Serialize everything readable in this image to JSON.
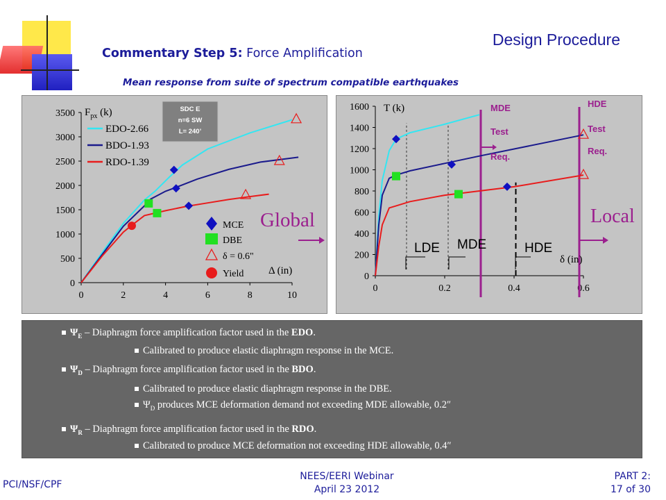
{
  "header": {
    "section_title": "Design Procedure",
    "title_bold": "Commentary Step 5:",
    "title_rest": " Force Amplification",
    "subtitle": "Mean response from suite of spectrum compatible earthquakes"
  },
  "left_chart": {
    "y_axis_title": "F",
    "y_axis_sub": "px",
    "y_axis_unit": " (k)",
    "x_axis_title": "Δ (in)",
    "x_ticks": [
      "0",
      "2",
      "4",
      "6",
      "8",
      "10"
    ],
    "y_ticks": [
      "0",
      "500",
      "1000",
      "1500",
      "2000",
      "2500",
      "3000",
      "3500"
    ],
    "legend_series": [
      "EDO-2.66",
      "BDO-1.93",
      "RDO-1.39"
    ],
    "markers_legend": [
      "MCE",
      "DBE",
      "δ = 0.6\"",
      "Yield"
    ],
    "info_box": [
      "SDC E",
      "n=6 SW",
      "L= 240’"
    ],
    "big_label": "Global"
  },
  "right_chart": {
    "y_axis_title": "T (k)",
    "x_axis_title": "δ (in)",
    "x_ticks": [
      "0",
      "0.2",
      "0.4",
      "0.6"
    ],
    "y_ticks": [
      "0",
      "200",
      "400",
      "600",
      "800",
      "1000",
      "1200",
      "1400",
      "1600"
    ],
    "mde_note": [
      "MDE",
      "Test",
      "Req."
    ],
    "hde_note": [
      "HDE",
      "Test",
      "Req."
    ],
    "zone_labels": [
      "LDE",
      "MDE",
      "HDE"
    ],
    "big_label": "Local"
  },
  "chart_data": [
    {
      "type": "line",
      "title": "Global",
      "xlabel": "Δ (in)",
      "ylabel": "Fpx (k)",
      "xlim": [
        0,
        10
      ],
      "ylim": [
        0,
        3500
      ],
      "series": [
        {
          "name": "EDO-2.66",
          "color": "#33e6f2",
          "x": [
            0,
            1,
            2,
            3,
            3.5,
            4.2,
            4.8,
            6,
            8,
            10
          ],
          "y": [
            0,
            620,
            1220,
            1700,
            1880,
            2180,
            2420,
            2750,
            3080,
            3350
          ]
        },
        {
          "name": "BDO-1.93",
          "color": "#1a1a8c",
          "x": [
            0,
            1,
            2,
            3,
            3.3,
            4,
            4.5,
            5.5,
            7,
            8.5,
            10.3
          ],
          "y": [
            0,
            580,
            1160,
            1580,
            1720,
            1880,
            1960,
            2130,
            2330,
            2480,
            2580
          ]
        },
        {
          "name": "RDO-1.39",
          "color": "#e81c1c",
          "x": [
            0,
            1,
            2,
            2.4,
            3,
            4,
            5,
            6,
            7,
            8,
            8.9
          ],
          "y": [
            0,
            550,
            1040,
            1180,
            1380,
            1480,
            1570,
            1640,
            1710,
            1770,
            1820
          ]
        }
      ],
      "markers": [
        {
          "kind": "MCE",
          "color": "#1010c0",
          "points": [
            [
              4.4,
              2320
            ],
            [
              4.5,
              1940
            ],
            [
              5.1,
              1580
            ]
          ]
        },
        {
          "kind": "DBE",
          "color": "#22e022",
          "points": [
            [
              3.2,
              1630
            ],
            [
              3.6,
              1430
            ]
          ]
        },
        {
          "kind": "δ = 0.6\"",
          "color": "#e81c1c",
          "points": [
            [
              10.2,
              3360
            ],
            [
              9.4,
              2500
            ],
            [
              7.8,
              1800
            ]
          ]
        },
        {
          "kind": "Yield",
          "color": "#e81c1c",
          "points": [
            [
              2.4,
              1170
            ]
          ]
        }
      ]
    },
    {
      "type": "line",
      "title": "Local",
      "xlabel": "δ (in)",
      "ylabel": "T (k)",
      "xlim": [
        0,
        0.6
      ],
      "ylim": [
        0,
        1600
      ],
      "series": [
        {
          "name": "EDO",
          "color": "#33e6f2",
          "x": [
            0,
            0.01,
            0.02,
            0.04,
            0.06,
            0.1,
            0.2,
            0.3
          ],
          "y": [
            0,
            560,
            900,
            1180,
            1290,
            1350,
            1430,
            1520
          ]
        },
        {
          "name": "BDO",
          "color": "#1a1a8c",
          "x": [
            0,
            0.01,
            0.02,
            0.04,
            0.06,
            0.1,
            0.2,
            0.3,
            0.6
          ],
          "y": [
            0,
            480,
            760,
            920,
            950,
            990,
            1060,
            1130,
            1330
          ]
        },
        {
          "name": "RDO",
          "color": "#e81c1c",
          "x": [
            0,
            0.01,
            0.02,
            0.04,
            0.06,
            0.1,
            0.2,
            0.3,
            0.4,
            0.6
          ],
          "y": [
            0,
            280,
            480,
            640,
            660,
            700,
            760,
            800,
            840,
            950
          ]
        }
      ],
      "markers": [
        {
          "kind": "MCE",
          "color": "#1010c0",
          "points": [
            [
              0.06,
              1290
            ],
            [
              0.22,
              1050
            ],
            [
              0.38,
              840
            ]
          ]
        },
        {
          "kind": "DBE",
          "color": "#22e022",
          "points": [
            [
              0.06,
              940
            ],
            [
              0.24,
              770
            ]
          ]
        },
        {
          "kind": "δ = 0.6\"",
          "color": "#e81c1c",
          "points": [
            [
              0.6,
              1330
            ],
            [
              0.6,
              950
            ]
          ]
        }
      ]
    }
  ],
  "notes": {
    "n1_sym": "Ψ",
    "n1_sub": "E",
    "n1_text": " – Diaphragm force amplification factor used in the ",
    "n1_bold": "EDO",
    "n1_sub1": "Calibrated to produce elastic diaphragm response in the MCE.",
    "n2_sym": "Ψ",
    "n2_sub": "D",
    "n2_text": " – Diaphragm force amplification factor used in the ",
    "n2_bold": "BDO",
    "n2_sub1": "Calibrated to produce elastic diaphragm response in the DBE.",
    "n2_sub2_sym": "Ψ",
    "n2_sub2_sub": "D",
    "n2_sub2": " produces MCE deformation demand not exceeding MDE allowable, 0.2″",
    "n3_sym": "Ψ",
    "n3_sub": "R",
    "n3_text": " – Diaphragm force amplification factor used in the ",
    "n3_bold": "RDO",
    "n3_sub1": "Calibrated to produce MCE deformation not exceeding HDE allowable, 0.4″"
  },
  "footer": {
    "left": "PCI/NSF/CPF",
    "center_line1": "NEES/EERI Webinar",
    "center_line2": "April 23 2012",
    "right_line1": "PART 2:",
    "right_line2": "17 of 30"
  },
  "colors": {
    "title_blue": "#1c1c9a",
    "panel_gray": "#c4c4c4",
    "notes_gray": "#666666",
    "purple": "#9b1f8e"
  }
}
